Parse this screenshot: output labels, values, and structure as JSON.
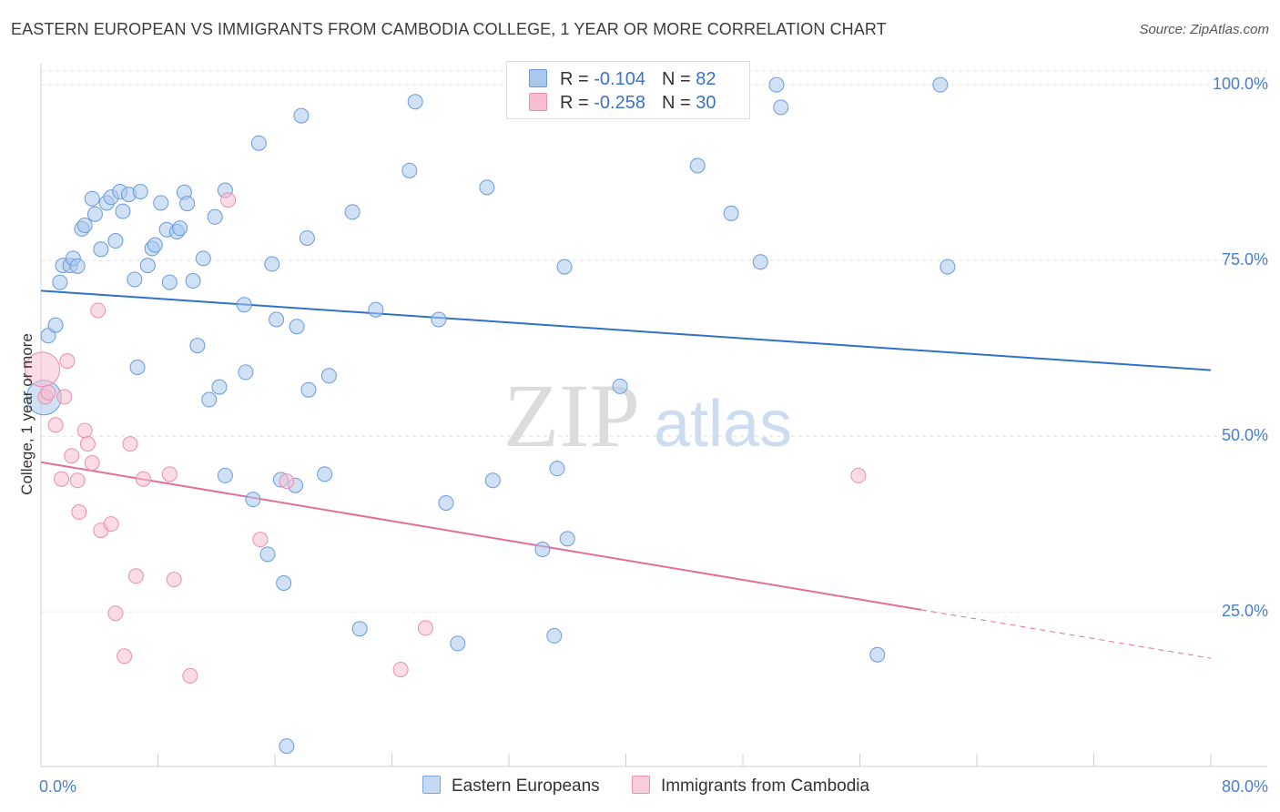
{
  "title": "EASTERN EUROPEAN VS IMMIGRANTS FROM CAMBODIA COLLEGE, 1 YEAR OR MORE CORRELATION CHART",
  "source": "Source: ZipAtlas.com",
  "watermark": {
    "zip": "ZIP",
    "atlas": "atlas"
  },
  "legend": {
    "series1": {
      "r_label": "R = ",
      "r_value": "-0.104",
      "n_label": "N = ",
      "n_value": "82"
    },
    "series2": {
      "r_label": "R = ",
      "r_value": "-0.258",
      "n_label": "N = ",
      "n_value": "30"
    }
  },
  "colors": {
    "blue_fill": "#aac8ee",
    "blue_stroke": "#6a9bd8",
    "blue_line": "#2f72c8",
    "pink_fill": "#f7bdd0",
    "pink_stroke": "#e890ae",
    "pink_line": "#e0709a",
    "grid": "#e2e2e2",
    "tick_text": "#4a7fc9"
  },
  "chart_data": {
    "type": "scatter",
    "title": "EASTERN EUROPEAN VS IMMIGRANTS FROM CAMBODIA COLLEGE, 1 YEAR OR MORE CORRELATION CHART",
    "xlabel": "",
    "ylabel": "College, 1 year or more",
    "xlim": [
      0,
      80
    ],
    "ylim": [
      3,
      103
    ],
    "x_tick_labels": [
      "0.0%",
      "80.0%"
    ],
    "y_ticks": [
      25,
      50,
      75,
      100
    ],
    "y_tick_labels": [
      "25.0%",
      "50.0%",
      "75.0%",
      "100.0%"
    ],
    "grid": true,
    "legend_position": "bottom",
    "series": [
      {
        "name": "Eastern Europeans",
        "trendline": {
          "x": [
            0,
            80
          ],
          "y": [
            70.7,
            59.4
          ]
        },
        "points": [
          {
            "x": 0.2,
            "y": 55.5,
            "big": true
          },
          {
            "x": 0.5,
            "y": 64.3
          },
          {
            "x": 1.0,
            "y": 65.8
          },
          {
            "x": 1.3,
            "y": 71.9
          },
          {
            "x": 1.5,
            "y": 74.3
          },
          {
            "x": 2.0,
            "y": 74.3
          },
          {
            "x": 2.2,
            "y": 75.3
          },
          {
            "x": 2.5,
            "y": 74.2
          },
          {
            "x": 2.8,
            "y": 79.5
          },
          {
            "x": 3.0,
            "y": 80.0
          },
          {
            "x": 3.5,
            "y": 83.8
          },
          {
            "x": 3.7,
            "y": 81.6
          },
          {
            "x": 4.1,
            "y": 76.6
          },
          {
            "x": 4.5,
            "y": 83.2
          },
          {
            "x": 4.8,
            "y": 84.0
          },
          {
            "x": 5.1,
            "y": 77.8
          },
          {
            "x": 5.4,
            "y": 84.8
          },
          {
            "x": 5.6,
            "y": 82.0
          },
          {
            "x": 6.0,
            "y": 84.4
          },
          {
            "x": 6.4,
            "y": 72.3
          },
          {
            "x": 6.6,
            "y": 59.8
          },
          {
            "x": 6.8,
            "y": 84.8
          },
          {
            "x": 7.3,
            "y": 74.3
          },
          {
            "x": 7.6,
            "y": 76.7
          },
          {
            "x": 7.8,
            "y": 77.2
          },
          {
            "x": 8.2,
            "y": 83.2
          },
          {
            "x": 8.6,
            "y": 79.4
          },
          {
            "x": 8.8,
            "y": 71.9
          },
          {
            "x": 9.3,
            "y": 79.1
          },
          {
            "x": 9.5,
            "y": 79.6
          },
          {
            "x": 9.8,
            "y": 84.7
          },
          {
            "x": 10.0,
            "y": 83.1
          },
          {
            "x": 10.4,
            "y": 72.1
          },
          {
            "x": 10.7,
            "y": 62.9
          },
          {
            "x": 11.1,
            "y": 75.3
          },
          {
            "x": 11.5,
            "y": 55.2
          },
          {
            "x": 11.9,
            "y": 81.2
          },
          {
            "x": 12.2,
            "y": 57.0
          },
          {
            "x": 12.6,
            "y": 85.0
          },
          {
            "x": 12.6,
            "y": 44.4
          },
          {
            "x": 13.9,
            "y": 68.7
          },
          {
            "x": 14.0,
            "y": 59.1
          },
          {
            "x": 14.5,
            "y": 41.0
          },
          {
            "x": 14.9,
            "y": 91.7
          },
          {
            "x": 15.5,
            "y": 33.2
          },
          {
            "x": 15.8,
            "y": 74.5
          },
          {
            "x": 16.1,
            "y": 66.6
          },
          {
            "x": 16.4,
            "y": 43.8
          },
          {
            "x": 16.6,
            "y": 29.1
          },
          {
            "x": 16.8,
            "y": 5.9
          },
          {
            "x": 17.4,
            "y": 43.0
          },
          {
            "x": 17.5,
            "y": 65.6
          },
          {
            "x": 17.8,
            "y": 95.6
          },
          {
            "x": 18.2,
            "y": 78.2
          },
          {
            "x": 18.3,
            "y": 56.6
          },
          {
            "x": 19.4,
            "y": 44.6
          },
          {
            "x": 19.7,
            "y": 58.6
          },
          {
            "x": 21.3,
            "y": 81.9
          },
          {
            "x": 21.8,
            "y": 22.6
          },
          {
            "x": 22.9,
            "y": 68.0
          },
          {
            "x": 25.2,
            "y": 87.8
          },
          {
            "x": 25.6,
            "y": 97.6
          },
          {
            "x": 27.2,
            "y": 66.6
          },
          {
            "x": 27.7,
            "y": 40.5
          },
          {
            "x": 28.5,
            "y": 20.5
          },
          {
            "x": 30.5,
            "y": 85.4
          },
          {
            "x": 30.9,
            "y": 43.7
          },
          {
            "x": 34.3,
            "y": 33.9
          },
          {
            "x": 35.1,
            "y": 21.6
          },
          {
            "x": 35.3,
            "y": 45.4
          },
          {
            "x": 35.8,
            "y": 74.1
          },
          {
            "x": 36.0,
            "y": 35.4
          },
          {
            "x": 39.6,
            "y": 57.1
          },
          {
            "x": 44.9,
            "y": 88.5
          },
          {
            "x": 47.2,
            "y": 81.7
          },
          {
            "x": 49.2,
            "y": 74.8
          },
          {
            "x": 50.3,
            "y": 100.0
          },
          {
            "x": 50.6,
            "y": 96.8
          },
          {
            "x": 57.2,
            "y": 18.9
          },
          {
            "x": 61.5,
            "y": 100.0
          },
          {
            "x": 62.0,
            "y": 74.1
          }
        ]
      },
      {
        "name": "Immigrants from Cambodia",
        "trendline": {
          "x": [
            0,
            60.2
          ],
          "y": [
            46.3,
            25.3
          ]
        },
        "trendline_dashed": {
          "x": [
            60.2,
            80
          ],
          "y": [
            25.3,
            18.4
          ]
        },
        "points": [
          {
            "x": 0.1,
            "y": 59.5,
            "big": true
          },
          {
            "x": 0.3,
            "y": 55.6
          },
          {
            "x": 0.5,
            "y": 56.2
          },
          {
            "x": 1.0,
            "y": 51.6
          },
          {
            "x": 1.4,
            "y": 43.9
          },
          {
            "x": 1.6,
            "y": 55.6
          },
          {
            "x": 1.8,
            "y": 60.7
          },
          {
            "x": 2.1,
            "y": 47.2
          },
          {
            "x": 2.5,
            "y": 43.7
          },
          {
            "x": 2.6,
            "y": 39.2
          },
          {
            "x": 3.0,
            "y": 50.8
          },
          {
            "x": 3.2,
            "y": 48.9
          },
          {
            "x": 3.5,
            "y": 46.2
          },
          {
            "x": 3.9,
            "y": 67.9
          },
          {
            "x": 4.1,
            "y": 36.6
          },
          {
            "x": 4.8,
            "y": 37.5
          },
          {
            "x": 5.1,
            "y": 24.8
          },
          {
            "x": 5.7,
            "y": 18.7
          },
          {
            "x": 6.1,
            "y": 48.9
          },
          {
            "x": 6.5,
            "y": 30.1
          },
          {
            "x": 7.0,
            "y": 43.9
          },
          {
            "x": 8.8,
            "y": 44.6
          },
          {
            "x": 9.1,
            "y": 29.6
          },
          {
            "x": 10.2,
            "y": 15.9
          },
          {
            "x": 12.8,
            "y": 83.6
          },
          {
            "x": 15.0,
            "y": 35.3
          },
          {
            "x": 16.8,
            "y": 43.6
          },
          {
            "x": 24.6,
            "y": 16.8
          },
          {
            "x": 26.3,
            "y": 22.7
          },
          {
            "x": 55.9,
            "y": 44.4
          }
        ]
      }
    ]
  },
  "bottom_legend": {
    "item1": "Eastern Europeans",
    "item2": "Immigrants from Cambodia"
  }
}
